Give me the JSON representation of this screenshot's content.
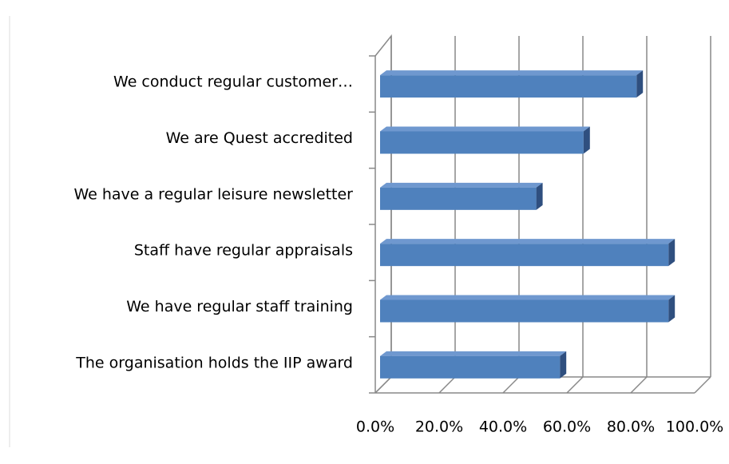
{
  "chart_data": {
    "type": "bar3d",
    "categories": [
      "We conduct regular customer…",
      "We are Quest accredited",
      "We have a regular leisure newsletter",
      "Staff have regular appraisals",
      "We have regular staff training",
      "The organisation holds the IIP award"
    ],
    "values": [
      83.3,
      66.7,
      51.9,
      93.3,
      93.3,
      59.3
    ],
    "color": "#4f81bd",
    "xlim": [
      0,
      100
    ],
    "xticks": [
      {
        "value": 0,
        "label": "0.0%"
      },
      {
        "value": 20,
        "label": "20.0%"
      },
      {
        "value": 40,
        "label": "40.0%"
      },
      {
        "value": 60,
        "label": "60.0%"
      },
      {
        "value": 80,
        "label": "80.0%"
      },
      {
        "value": 100,
        "label": "100.0%"
      }
    ],
    "grid": true
  }
}
